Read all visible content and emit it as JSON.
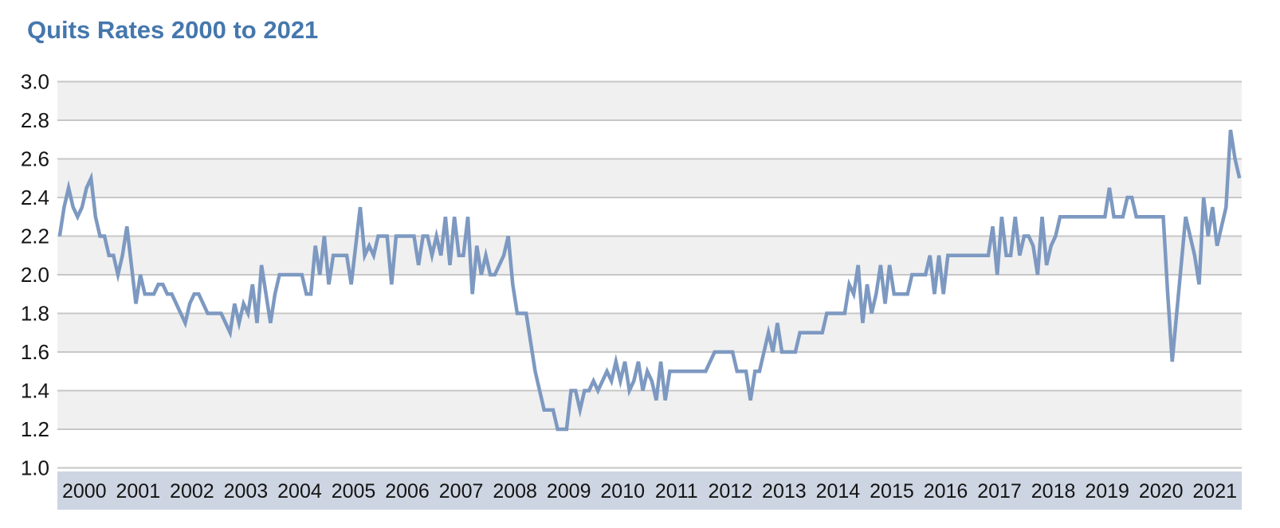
{
  "title": {
    "text": "Quits Rates 2000 to 2021"
  },
  "colors": {
    "title": "#4577ad",
    "line": "#7d99c1",
    "gridline": "#c7c7c7",
    "band_shaded": "#f0f0f0",
    "band_white": "#ffffff",
    "axis_band": "#cdd5e2",
    "label_text": "#141414",
    "background": "#ffffff"
  },
  "chart_data": {
    "type": "line",
    "title": "Quits Rates 2000 to 2021",
    "xlabel": "",
    "ylabel": "",
    "ylim": [
      1.0,
      3.0
    ],
    "y_ticks": [
      "3.0",
      "2.8",
      "2.6",
      "2.4",
      "2.2",
      "2.0",
      "1.8",
      "1.6",
      "1.4",
      "1.2",
      "1.0"
    ],
    "grid": "horizontal gridlines every 0.2 with alternating shaded bands (shaded: 2.8-3.0, 2.4-2.6, 2.0-2.2, 1.6-1.8, 1.2-1.4)",
    "legend": "none",
    "x_axis_style": "year labels inside light blue band along bottom",
    "years": [
      "2000",
      "2001",
      "2002",
      "2003",
      "2004",
      "2005",
      "2006",
      "2007",
      "2008",
      "2009",
      "2010",
      "2011",
      "2012",
      "2013",
      "2014",
      "2015",
      "2016",
      "2017",
      "2018",
      "2019",
      "2020",
      "2021"
    ],
    "frequency": "monthly",
    "series_name": "Quits rate",
    "values_by_year": {
      "2000": [
        2.2,
        2.35,
        2.45,
        2.35,
        2.3,
        2.35,
        2.45,
        2.5,
        2.3,
        2.2,
        2.2,
        2.1
      ],
      "2001": [
        2.1,
        2.0,
        2.1,
        2.25,
        2.05,
        1.85,
        2.0,
        1.9,
        1.9,
        1.9,
        1.95,
        1.95
      ],
      "2002": [
        1.9,
        1.9,
        1.85,
        1.8,
        1.75,
        1.85,
        1.9,
        1.9,
        1.85,
        1.8,
        1.8,
        1.8
      ],
      "2003": [
        1.8,
        1.75,
        1.7,
        1.85,
        1.75,
        1.85,
        1.8,
        1.95,
        1.75,
        2.05,
        1.9,
        1.75
      ],
      "2004": [
        1.9,
        2.0,
        2.0,
        2.0,
        2.0,
        2.0,
        2.0,
        1.9,
        1.9,
        2.15,
        2.0,
        2.2
      ],
      "2005": [
        1.95,
        2.1,
        2.1,
        2.1,
        2.1,
        1.95,
        2.15,
        2.35,
        2.1,
        2.15,
        2.1,
        2.2
      ],
      "2006": [
        2.2,
        2.2,
        1.95,
        2.2,
        2.2,
        2.2,
        2.2,
        2.2,
        2.05,
        2.2,
        2.2,
        2.1
      ],
      "2007": [
        2.2,
        2.1,
        2.3,
        2.05,
        2.3,
        2.1,
        2.1,
        2.3,
        1.9,
        2.15,
        2.0,
        2.1
      ],
      "2008": [
        2.0,
        2.0,
        2.05,
        2.1,
        2.2,
        1.95,
        1.8,
        1.8,
        1.8,
        1.65,
        1.5,
        1.4
      ],
      "2009": [
        1.3,
        1.3,
        1.3,
        1.2,
        1.2,
        1.2,
        1.4,
        1.4,
        1.3,
        1.4,
        1.4,
        1.45
      ],
      "2010": [
        1.4,
        1.45,
        1.5,
        1.45,
        1.55,
        1.45,
        1.55,
        1.4,
        1.45,
        1.55,
        1.4,
        1.5
      ],
      "2011": [
        1.45,
        1.35,
        1.55,
        1.35,
        1.5,
        1.5,
        1.5,
        1.5,
        1.5,
        1.5,
        1.5,
        1.5
      ],
      "2012": [
        1.5,
        1.55,
        1.6,
        1.6,
        1.6,
        1.6,
        1.6,
        1.5,
        1.5,
        1.5,
        1.35,
        1.5
      ],
      "2013": [
        1.5,
        1.6,
        1.7,
        1.6,
        1.75,
        1.6,
        1.6,
        1.6,
        1.6,
        1.7,
        1.7,
        1.7
      ],
      "2014": [
        1.7,
        1.7,
        1.7,
        1.8,
        1.8,
        1.8,
        1.8,
        1.8,
        1.95,
        1.9,
        2.05,
        1.75
      ],
      "2015": [
        1.95,
        1.8,
        1.9,
        2.05,
        1.85,
        2.05,
        1.9,
        1.9,
        1.9,
        1.9,
        2.0,
        2.0
      ],
      "2016": [
        2.0,
        2.0,
        2.1,
        1.9,
        2.1,
        1.9,
        2.1,
        2.1,
        2.1,
        2.1,
        2.1,
        2.1
      ],
      "2017": [
        2.1,
        2.1,
        2.1,
        2.1,
        2.25,
        2.0,
        2.3,
        2.1,
        2.1,
        2.3,
        2.1,
        2.2
      ],
      "2018": [
        2.2,
        2.15,
        2.0,
        2.3,
        2.05,
        2.15,
        2.2,
        2.3,
        2.3,
        2.3,
        2.3,
        2.3
      ],
      "2019": [
        2.3,
        2.3,
        2.3,
        2.3,
        2.3,
        2.3,
        2.45,
        2.3,
        2.3,
        2.3,
        2.4,
        2.4
      ],
      "2020": [
        2.3,
        2.3,
        2.3,
        2.3,
        2.3,
        2.3,
        2.3,
        1.9,
        1.55,
        1.8,
        2.05,
        2.3
      ],
      "2021": [
        2.2,
        2.1,
        1.95,
        2.4,
        2.2,
        2.35,
        2.15,
        2.25,
        2.35,
        2.75,
        2.6,
        2.5
      ]
    }
  }
}
